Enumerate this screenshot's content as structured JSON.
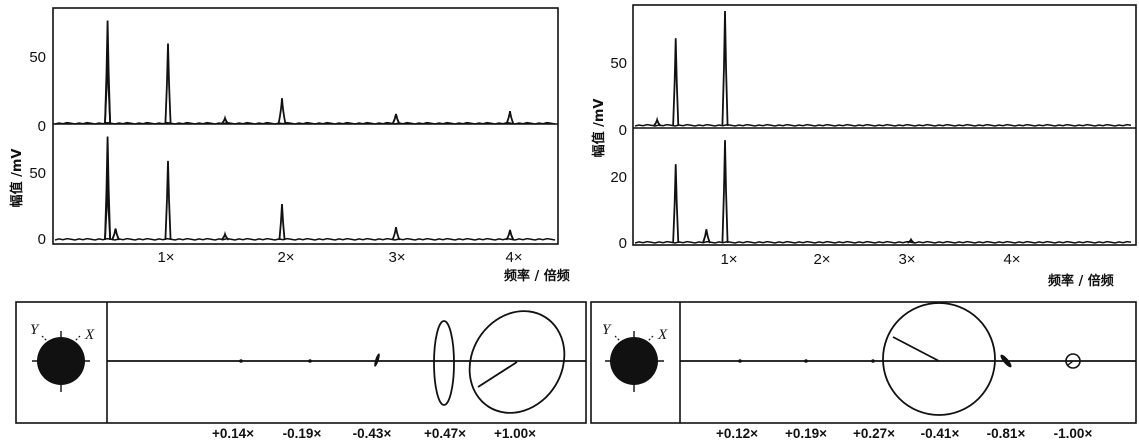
{
  "chart_data": [
    {
      "type": "line",
      "panel": "left-spectrum",
      "ylabel": "幅值 /mV",
      "xlabel": "频率 / 倍频",
      "x_ticks": [
        "1×",
        "2×",
        "3×",
        "4×"
      ],
      "subplots": [
        {
          "yticks": [
            "50",
            "0"
          ],
          "ylim": [
            0,
            80
          ],
          "peaks": [
            [
              0.47,
              72
            ],
            [
              0.47,
              50
            ],
            [
              1.0,
              56
            ],
            [
              1.5,
              4
            ],
            [
              2.0,
              18
            ],
            [
              3.0,
              7
            ],
            [
              4.0,
              9
            ]
          ]
        },
        {
          "yticks": [
            "50",
            "0"
          ],
          "ylim": [
            0,
            80
          ],
          "peaks": [
            [
              0.47,
              72
            ],
            [
              0.47,
              42
            ],
            [
              0.54,
              8
            ],
            [
              1.0,
              55
            ],
            [
              1.5,
              4
            ],
            [
              2.0,
              25
            ],
            [
              3.0,
              9
            ],
            [
              4.0,
              7
            ]
          ]
        }
      ]
    },
    {
      "type": "line",
      "panel": "right-spectrum",
      "ylabel": "幅值 /mV",
      "xlabel": "频率 / 倍频",
      "x_ticks": [
        "1×",
        "2×",
        "3×",
        "4×"
      ],
      "subplots": [
        {
          "yticks": [
            "50",
            "0"
          ],
          "ylim": [
            0,
            80
          ],
          "peaks": [
            [
              0.27,
              4
            ],
            [
              0.47,
              58
            ],
            [
              1.0,
              76
            ]
          ]
        },
        {
          "yticks": [
            "20",
            "0"
          ],
          "ylim": [
            0,
            35
          ],
          "peaks": [
            [
              0.47,
              23
            ],
            [
              0.8,
              4
            ],
            [
              1.0,
              30
            ],
            [
              3.0,
              1
            ]
          ]
        }
      ]
    },
    {
      "type": "scatter",
      "panel": "left-orbit",
      "axis_labels": [
        "Y",
        "X"
      ],
      "orbit_labels": [
        "+0.14×",
        "-0.19×",
        "-0.43×",
        "+0.47×",
        "+1.00×"
      ]
    },
    {
      "type": "scatter",
      "panel": "right-orbit",
      "axis_labels": [
        "Y",
        "X"
      ],
      "orbit_labels": [
        "+0.12×",
        "+0.19×",
        "+0.27×",
        "-0.41×",
        "-0.81×",
        "-1.00×"
      ]
    }
  ]
}
